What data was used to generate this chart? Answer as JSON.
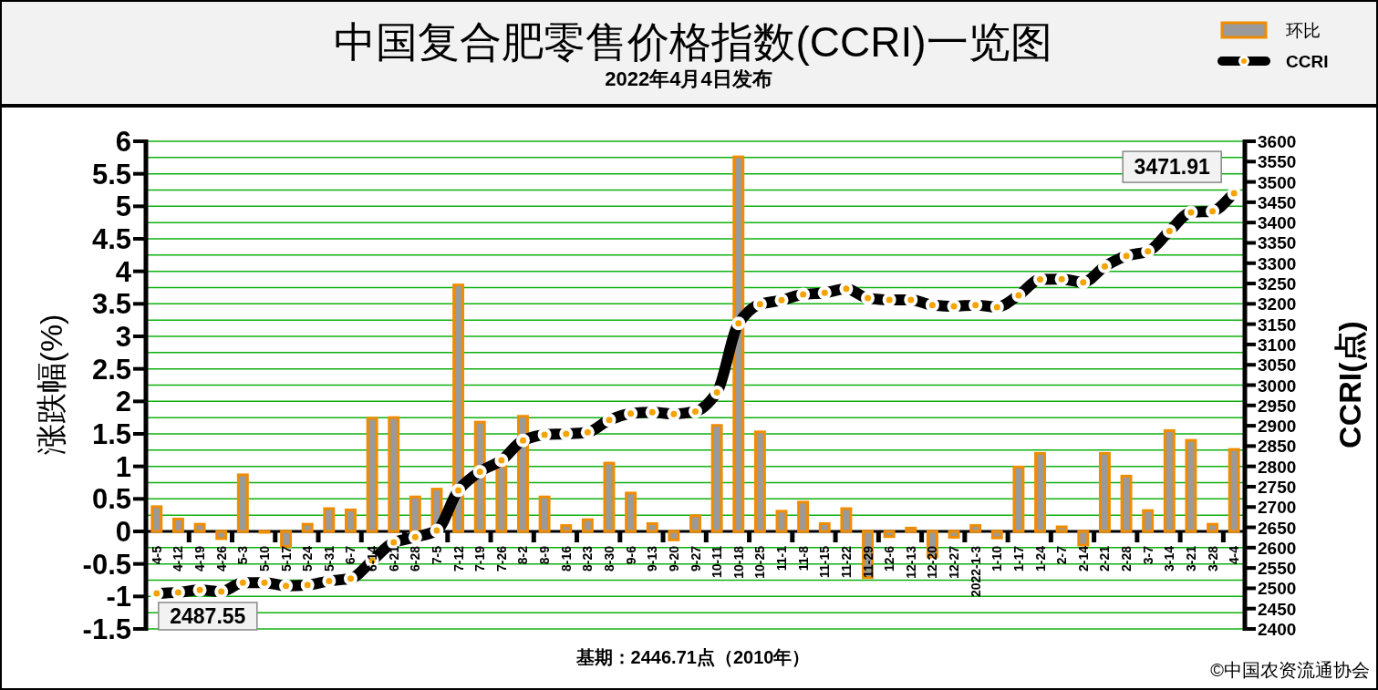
{
  "chart_data": {
    "type": "bar",
    "title": "中国复合肥零售价格指数(CCRI)一览图",
    "subtitle": "2022年4月4日发布",
    "ylabel": "涨跌幅(%)",
    "y2label": "CCRI(点)",
    "annotations": [
      "基期：2446.71点（2010年）",
      "©中国农资流通协会"
    ],
    "categories": [
      "4-5",
      "4-12",
      "4-19",
      "4-26",
      "5-3",
      "5-10",
      "5-17",
      "5-24",
      "5-31",
      "6-7",
      "6-14",
      "6-21",
      "6-28",
      "7-5",
      "7-12",
      "7-19",
      "7-26",
      "8-2",
      "8-9",
      "8-16",
      "8-23",
      "8-30",
      "9-6",
      "9-13",
      "9-20",
      "9-27",
      "10-11",
      "10-18",
      "10-25",
      "11-1",
      "11-8",
      "11-15",
      "11-22",
      "11-29",
      "12-6",
      "12-13",
      "12-20",
      "12-27",
      "2022-1-3",
      "1-10",
      "1-17",
      "1-24",
      "2-7",
      "2-14",
      "2-21",
      "2-28",
      "3-7",
      "3-14",
      "3-21",
      "3-28",
      "4-4"
    ],
    "series": [
      {
        "name": "环比",
        "color": "#f08c00",
        "values": [
          0.38,
          0.19,
          0.11,
          -0.11,
          0.87,
          0,
          -0.23,
          0.11,
          0.35,
          0.33,
          1.74,
          1.75,
          0.53,
          0.65,
          3.79,
          1.68,
          1.0,
          1.77,
          0.53,
          0.09,
          0.18,
          1.05,
          0.59,
          0.12,
          -0.13,
          0.24,
          1.63,
          5.76,
          1.53,
          0.31,
          0.45,
          0.12,
          0.35,
          -0.71,
          -0.08,
          0.05,
          -0.39,
          -0.09,
          0.09,
          -0.1,
          0.99,
          1.2,
          0.07,
          -0.21,
          1.2,
          0.85,
          0.32,
          1.55,
          1.4,
          0.11,
          1.26
        ]
      },
      {
        "name": "CCRI",
        "type": "line",
        "axis": "y2",
        "color": "#000000",
        "values": [
          2487.55,
          2490,
          2496,
          2492,
          2514,
          2514,
          2506,
          2508,
          2518,
          2524,
          2568,
          2613,
          2626,
          2642,
          2741,
          2787,
          2815,
          2864,
          2878,
          2880,
          2884,
          2914,
          2930,
          2933,
          2929,
          2935,
          2982,
          3152,
          3199,
          3209,
          3223,
          3227,
          3237,
          3214,
          3210,
          3210,
          3197,
          3194,
          3197,
          3192,
          3221,
          3260,
          3261,
          3253,
          3292,
          3318,
          3329,
          3379,
          3425,
          3428,
          3471.91
        ],
        "value_labels": [
          "2487.55",
          null,
          null,
          null,
          null,
          null,
          null,
          null,
          null,
          null,
          null,
          null,
          null,
          null,
          null,
          null,
          null,
          null,
          null,
          null,
          null,
          null,
          null,
          null,
          null,
          null,
          null,
          null,
          null,
          null,
          null,
          null,
          null,
          null,
          null,
          null,
          null,
          null,
          null,
          null,
          null,
          null,
          null,
          null,
          null,
          null,
          null,
          null,
          null,
          null,
          "3471.91"
        ]
      }
    ],
    "ylim": [
      -1.5,
      6
    ],
    "yticks": [
      -1.5,
      -1,
      -0.5,
      0,
      0.5,
      1,
      1.5,
      2,
      2.5,
      3,
      3.5,
      4,
      4.5,
      5,
      5.5,
      6
    ],
    "y2lim": [
      2400,
      3600
    ],
    "y2ticks": [
      2400,
      2450,
      2500,
      2550,
      2600,
      2650,
      2700,
      2750,
      2800,
      2850,
      2900,
      2950,
      3000,
      3050,
      3100,
      3150,
      3200,
      3250,
      3300,
      3350,
      3400,
      3450,
      3500,
      3550,
      3600
    ],
    "grid": "y",
    "legend": "top right",
    "marker": "circle"
  }
}
